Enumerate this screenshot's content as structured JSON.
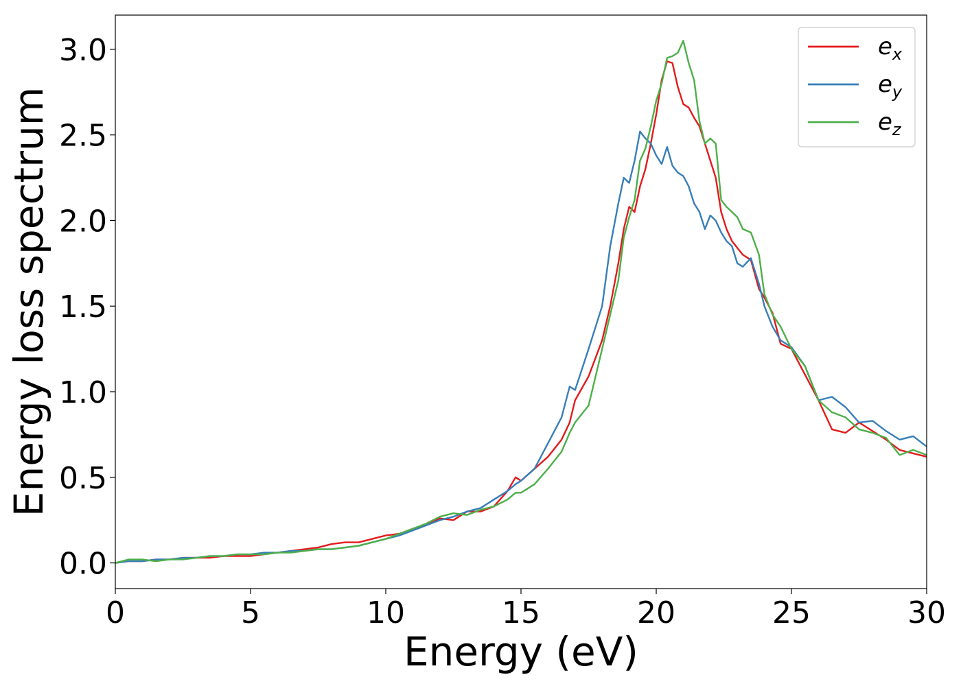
{
  "chart_data": {
    "type": "line",
    "title": "",
    "xlabel": "Energy (eV)",
    "ylabel": "Energy loss spectrum",
    "xlim": [
      0,
      30
    ],
    "ylim": [
      -0.15,
      3.2
    ],
    "xticks": [
      "0",
      "5",
      "10",
      "15",
      "20",
      "25",
      "30"
    ],
    "yticks": [
      "0.0",
      "0.5",
      "1.0",
      "1.5",
      "2.0",
      "2.5",
      "3.0"
    ],
    "grid": false,
    "legend_position": "top-right",
    "x": [
      0,
      0.5,
      1,
      1.5,
      2,
      2.5,
      3,
      3.5,
      4,
      4.5,
      5,
      5.5,
      6,
      6.5,
      7,
      7.5,
      8,
      8.5,
      9,
      9.5,
      10,
      10.5,
      11,
      11.5,
      12,
      12.5,
      13,
      13.5,
      14,
      14.5,
      14.8,
      15,
      15.5,
      16,
      16.5,
      16.8,
      17,
      17.5,
      18,
      18.3,
      18.6,
      18.8,
      19,
      19.2,
      19.4,
      19.6,
      19.8,
      20,
      20.2,
      20.4,
      20.6,
      20.8,
      21,
      21.2,
      21.4,
      21.6,
      21.8,
      22,
      22.2,
      22.4,
      22.6,
      22.8,
      23,
      23.2,
      23.5,
      23.8,
      24,
      24.3,
      24.6,
      25,
      25.5,
      26,
      26.5,
      27,
      27.5,
      28,
      28.5,
      29,
      29.5,
      30
    ],
    "series": [
      {
        "name": "e",
        "subscript": "x",
        "color": "#e41a1c",
        "values": [
          0.0,
          0.01,
          0.01,
          0.02,
          0.02,
          0.03,
          0.03,
          0.03,
          0.04,
          0.04,
          0.04,
          0.05,
          0.06,
          0.07,
          0.08,
          0.09,
          0.11,
          0.12,
          0.12,
          0.14,
          0.16,
          0.17,
          0.2,
          0.22,
          0.26,
          0.25,
          0.3,
          0.3,
          0.33,
          0.42,
          0.5,
          0.48,
          0.55,
          0.62,
          0.72,
          0.82,
          0.95,
          1.09,
          1.3,
          1.5,
          1.75,
          1.95,
          2.08,
          2.05,
          2.2,
          2.3,
          2.45,
          2.62,
          2.82,
          2.93,
          2.92,
          2.78,
          2.68,
          2.66,
          2.6,
          2.55,
          2.45,
          2.35,
          2.25,
          2.05,
          1.95,
          1.88,
          1.84,
          1.8,
          1.77,
          1.6,
          1.55,
          1.46,
          1.28,
          1.25,
          1.1,
          0.95,
          0.78,
          0.76,
          0.82,
          0.77,
          0.72,
          0.66,
          0.64,
          0.62
        ]
      },
      {
        "name": "e",
        "subscript": "y",
        "color": "#377eb8",
        "values": [
          0.0,
          0.01,
          0.01,
          0.02,
          0.02,
          0.03,
          0.03,
          0.04,
          0.04,
          0.05,
          0.05,
          0.06,
          0.06,
          0.07,
          0.07,
          0.08,
          0.08,
          0.09,
          0.1,
          0.12,
          0.14,
          0.16,
          0.19,
          0.22,
          0.25,
          0.27,
          0.3,
          0.32,
          0.37,
          0.42,
          0.46,
          0.48,
          0.55,
          0.7,
          0.85,
          1.03,
          1.01,
          1.25,
          1.5,
          1.85,
          2.1,
          2.25,
          2.22,
          2.35,
          2.52,
          2.48,
          2.45,
          2.38,
          2.33,
          2.43,
          2.32,
          2.28,
          2.26,
          2.2,
          2.1,
          2.05,
          1.95,
          2.03,
          2.0,
          1.93,
          1.88,
          1.85,
          1.75,
          1.73,
          1.78,
          1.63,
          1.5,
          1.38,
          1.3,
          1.26,
          1.15,
          0.95,
          0.97,
          0.91,
          0.82,
          0.83,
          0.77,
          0.72,
          0.74,
          0.68
        ]
      },
      {
        "name": "e",
        "subscript": "z",
        "color": "#4daf4a",
        "values": [
          0.0,
          0.02,
          0.02,
          0.01,
          0.02,
          0.02,
          0.03,
          0.04,
          0.04,
          0.05,
          0.05,
          0.05,
          0.06,
          0.06,
          0.07,
          0.08,
          0.08,
          0.09,
          0.1,
          0.12,
          0.14,
          0.17,
          0.2,
          0.23,
          0.27,
          0.29,
          0.28,
          0.31,
          0.33,
          0.37,
          0.41,
          0.41,
          0.46,
          0.55,
          0.65,
          0.76,
          0.82,
          0.92,
          1.25,
          1.45,
          1.65,
          1.9,
          2.02,
          2.12,
          2.35,
          2.42,
          2.55,
          2.7,
          2.8,
          2.95,
          2.96,
          2.98,
          3.05,
          2.92,
          2.82,
          2.58,
          2.45,
          2.48,
          2.45,
          2.12,
          2.08,
          2.05,
          2.02,
          1.95,
          1.93,
          1.8,
          1.57,
          1.45,
          1.38,
          1.25,
          1.15,
          0.95,
          0.88,
          0.85,
          0.78,
          0.76,
          0.73,
          0.63,
          0.66,
          0.63
        ]
      }
    ]
  }
}
